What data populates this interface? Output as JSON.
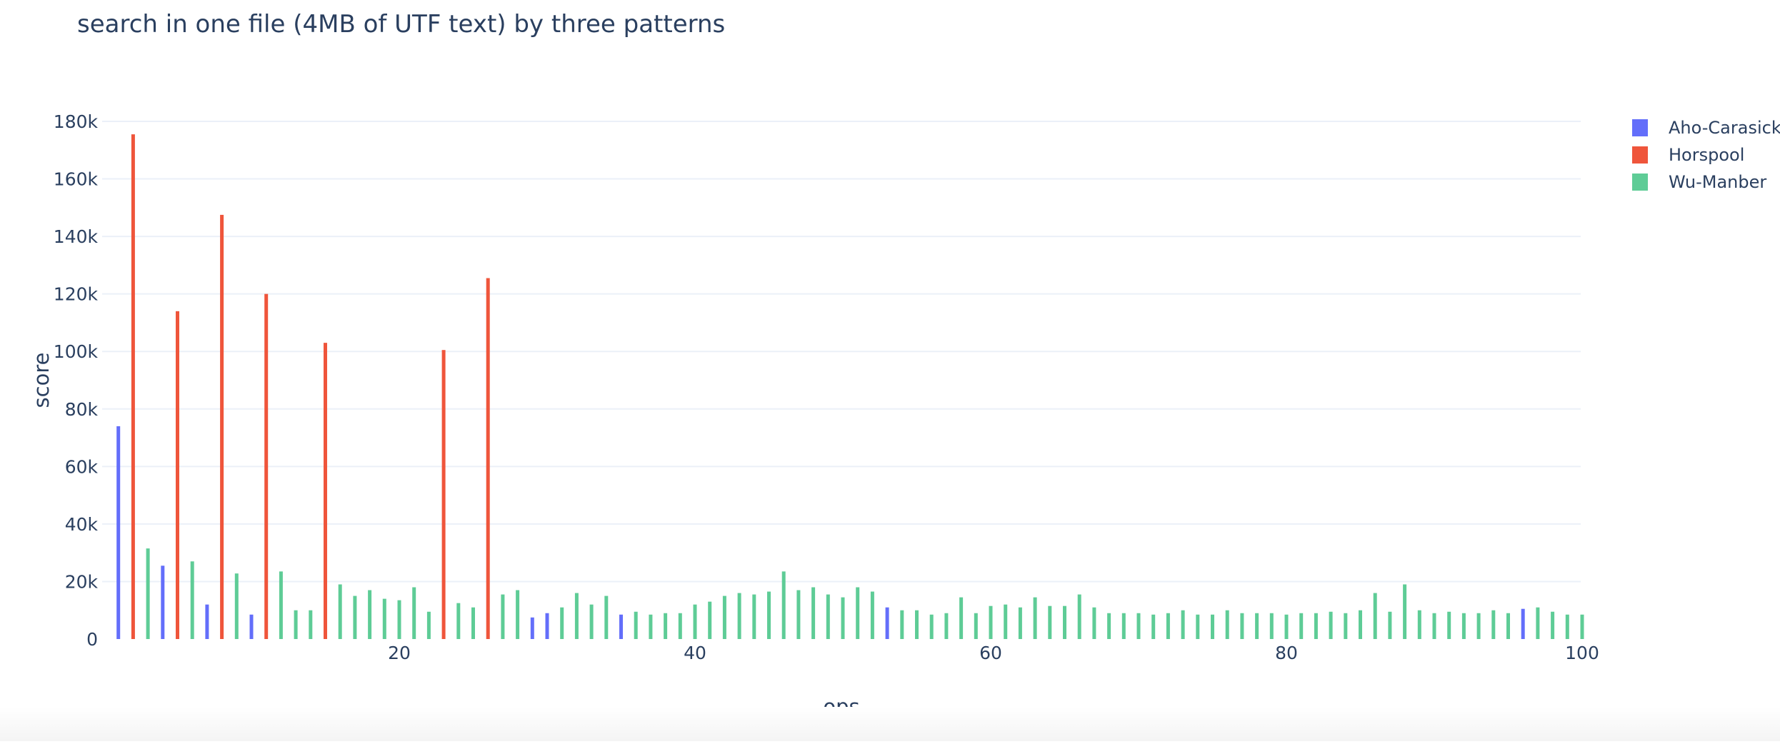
{
  "chart_data": {
    "type": "bar",
    "title": "search in one file (4MB of UTF text) by three patterns",
    "xlabel": "ops",
    "ylabel": "score",
    "xlim": [
      0,
      100
    ],
    "ylim": [
      0,
      180000
    ],
    "x_ticks": [
      20,
      40,
      60,
      80,
      100
    ],
    "y_ticks": [
      0,
      20000,
      40000,
      60000,
      80000,
      100000,
      120000,
      140000,
      160000,
      180000
    ],
    "y_tick_labels": [
      "0",
      "20k",
      "40k",
      "60k",
      "80k",
      "100k",
      "120k",
      "140k",
      "160k",
      "180k"
    ],
    "grid": "horizontal",
    "legend_position": "top-right",
    "series": [
      {
        "name": "Aho-Carasick",
        "color": "#636efa",
        "x": [
          1,
          4,
          7,
          10,
          29,
          30,
          35,
          53,
          96
        ],
        "values": [
          74000,
          25500,
          12000,
          8500,
          7500,
          9000,
          8500,
          11000,
          10500
        ]
      },
      {
        "name": "Horspool",
        "color": "#ef553b",
        "x": [
          2,
          5,
          8,
          11,
          15,
          23,
          26
        ],
        "values": [
          175500,
          114000,
          147500,
          120000,
          103000,
          100500,
          125500
        ]
      },
      {
        "name": "Wu-Manber",
        "color": "#5ecc96",
        "x": [
          3,
          6,
          9,
          12,
          13,
          14,
          16,
          17,
          18,
          19,
          20,
          21,
          22,
          24,
          25,
          27,
          28,
          31,
          32,
          33,
          34,
          36,
          37,
          38,
          39,
          40,
          41,
          42,
          43,
          44,
          45,
          46,
          47,
          48,
          49,
          50,
          51,
          52,
          54,
          55,
          56,
          57,
          58,
          59,
          60,
          61,
          62,
          63,
          64,
          65,
          66,
          67,
          68,
          69,
          70,
          71,
          72,
          73,
          74,
          75,
          76,
          77,
          78,
          79,
          80,
          81,
          82,
          83,
          84,
          85,
          86,
          87,
          88,
          89,
          90,
          91,
          92,
          93,
          94,
          95,
          97,
          98,
          99,
          100
        ],
        "values": [
          31500,
          27000,
          22800,
          23500,
          10000,
          10000,
          19000,
          15000,
          17000,
          14000,
          13500,
          18000,
          9500,
          12500,
          11000,
          15500,
          17000,
          11000,
          16000,
          12000,
          15000,
          9500,
          8500,
          9000,
          9000,
          12000,
          13000,
          15000,
          16000,
          15500,
          16500,
          23500,
          17000,
          18000,
          15500,
          14500,
          18000,
          16500,
          10000,
          10000,
          8500,
          9000,
          14500,
          9000,
          11500,
          12000,
          11000,
          14500,
          11500,
          11500,
          15500,
          11000,
          9000,
          9000,
          9000,
          8500,
          9000,
          10000,
          8500,
          8500,
          10000,
          9000,
          9000,
          9000,
          8500,
          9000,
          9000,
          9500,
          9000,
          10000,
          16000,
          9500,
          19000,
          10000,
          9000,
          9500,
          9000,
          9000,
          10000,
          9000,
          11000,
          9500,
          8500,
          8500
        ]
      }
    ]
  }
}
